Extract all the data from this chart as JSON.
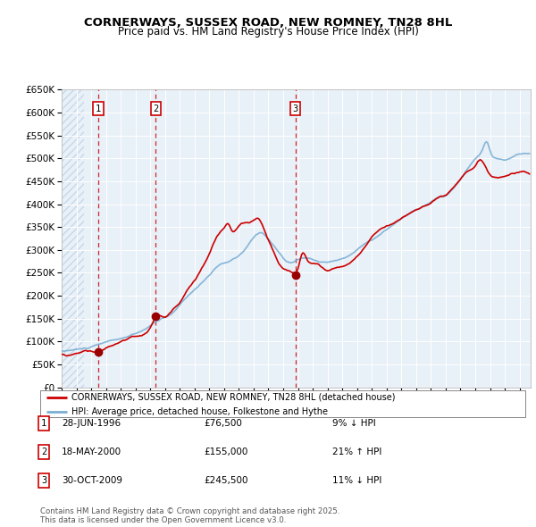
{
  "title": "CORNERWAYS, SUSSEX ROAD, NEW ROMNEY, TN28 8HL",
  "subtitle": "Price paid vs. HM Land Registry's House Price Index (HPI)",
  "legend_line1": "CORNERWAYS, SUSSEX ROAD, NEW ROMNEY, TN28 8HL (detached house)",
  "legend_line2": "HPI: Average price, detached house, Folkestone and Hythe",
  "transactions": [
    {
      "num": 1,
      "date": "28-JUN-1996",
      "price": "£76,500",
      "hpi": "9% ↓ HPI",
      "year": 1996.49,
      "value": 76500
    },
    {
      "num": 2,
      "date": "18-MAY-2000",
      "price": "£155,000",
      "hpi": "21% ↑ HPI",
      "year": 2000.38,
      "value": 155000
    },
    {
      "num": 3,
      "date": "30-OCT-2009",
      "price": "£245,500",
      "hpi": "11% ↓ HPI",
      "year": 2009.83,
      "value": 245500
    }
  ],
  "copyright": "Contains HM Land Registry data © Crown copyright and database right 2025.\nThis data is licensed under the Open Government Licence v3.0.",
  "background_color": "#e8f0f8",
  "hatch_color": "#c8d8ea",
  "red_color": "#cc0000",
  "blue_color": "#7aafd4",
  "ylim": [
    0,
    650000
  ],
  "yticks": [
    0,
    50000,
    100000,
    150000,
    200000,
    250000,
    300000,
    350000,
    400000,
    450000,
    500000,
    550000,
    600000,
    650000
  ],
  "xmin": 1994.0,
  "xmax": 2025.75,
  "title_fontsize": 9.5,
  "subtitle_fontsize": 8.5
}
